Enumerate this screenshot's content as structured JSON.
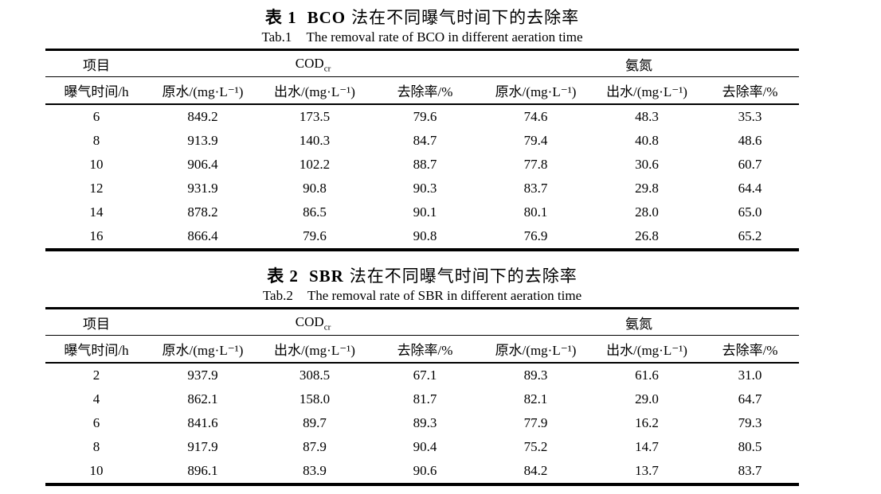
{
  "page": {
    "background": "#ffffff",
    "text_color": "#000000"
  },
  "tables": [
    {
      "title_zh": {
        "label": "表 1",
        "method": "BCO",
        "suffix": "法在不同曝气时间下的去除率"
      },
      "title_en": {
        "label": "Tab.1",
        "text": "The removal rate of BCO in different aeration time"
      },
      "header": {
        "item_label": "项目",
        "group1_base": "COD",
        "group1_sub": "cr",
        "group2": "氨氮",
        "columns": [
          "曝气时间/h",
          "原水/(mg·L⁻¹)",
          "出水/(mg·L⁻¹)",
          "去除率/%",
          "原水/(mg·L⁻¹)",
          "出水/(mg·L⁻¹)",
          "去除率/%"
        ]
      },
      "rows": [
        [
          "6",
          "849.2",
          "173.5",
          "79.6",
          "74.6",
          "48.3",
          "35.3"
        ],
        [
          "8",
          "913.9",
          "140.3",
          "84.7",
          "79.4",
          "40.8",
          "48.6"
        ],
        [
          "10",
          "906.4",
          "102.2",
          "88.7",
          "77.8",
          "30.6",
          "60.7"
        ],
        [
          "12",
          "931.9",
          "90.8",
          "90.3",
          "83.7",
          "29.8",
          "64.4"
        ],
        [
          "14",
          "878.2",
          "86.5",
          "90.1",
          "80.1",
          "28.0",
          "65.0"
        ],
        [
          "16",
          "866.4",
          "79.6",
          "90.8",
          "76.9",
          "26.8",
          "65.2"
        ]
      ]
    },
    {
      "title_zh": {
        "label": "表 2",
        "method": "SBR",
        "suffix": "法在不同曝气时间下的去除率"
      },
      "title_en": {
        "label": "Tab.2",
        "text": "The removal rate of SBR in different aeration time"
      },
      "header": {
        "item_label": "项目",
        "group1_base": "COD",
        "group1_sub": "cr",
        "group2": "氨氮",
        "columns": [
          "曝气时间/h",
          "原水/(mg·L⁻¹)",
          "出水/(mg·L⁻¹)",
          "去除率/%",
          "原水/(mg·L⁻¹)",
          "出水/(mg·L⁻¹)",
          "去除率/%"
        ]
      },
      "rows": [
        [
          "2",
          "937.9",
          "308.5",
          "67.1",
          "89.3",
          "61.6",
          "31.0"
        ],
        [
          "4",
          "862.1",
          "158.0",
          "81.7",
          "82.1",
          "29.0",
          "64.7"
        ],
        [
          "6",
          "841.6",
          "89.7",
          "89.3",
          "77.9",
          "16.2",
          "79.3"
        ],
        [
          "8",
          "917.9",
          "87.9",
          "90.4",
          "75.2",
          "14.7",
          "80.5"
        ],
        [
          "10",
          "896.1",
          "83.9",
          "90.6",
          "84.2",
          "13.7",
          "83.7"
        ]
      ]
    }
  ]
}
